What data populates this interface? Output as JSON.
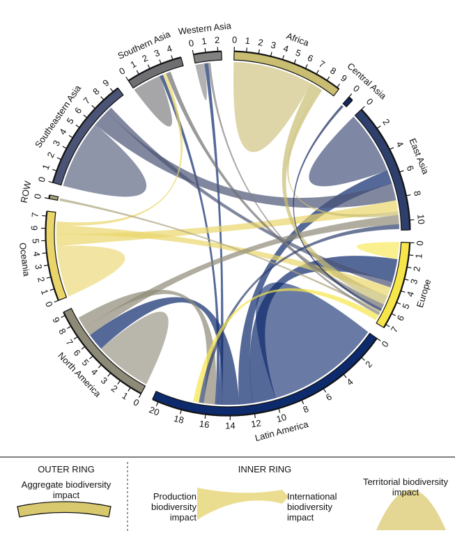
{
  "chart_data": {
    "type": "chord",
    "regions": [
      {
        "name": "Africa",
        "total": 9.2,
        "color": "#c9bd72",
        "ticks": [
          0,
          1,
          2,
          3,
          4,
          5,
          6,
          7,
          8,
          9
        ]
      },
      {
        "name": "Central Asia",
        "total": 0.4,
        "color": "#15285a",
        "ticks": [
          0
        ]
      },
      {
        "name": "East Asia",
        "total": 10.8,
        "color": "#2e3f6c",
        "ticks": [
          0,
          2,
          4,
          6,
          8,
          10
        ]
      },
      {
        "name": "Europe",
        "total": 7.3,
        "color": "#f7e64a",
        "ticks": [
          0,
          1,
          2,
          3,
          4,
          5,
          6,
          7
        ]
      },
      {
        "name": "Latin America",
        "total": 20.5,
        "color": "#0d2a6c",
        "ticks": [
          0,
          2,
          4,
          6,
          8,
          10,
          12,
          14,
          16,
          18,
          20
        ]
      },
      {
        "name": "North America",
        "total": 9.3,
        "color": "#8e8a78",
        "ticks": [
          0,
          1,
          2,
          3,
          4,
          5,
          6,
          7,
          8,
          9
        ]
      },
      {
        "name": "Oceania",
        "total": 7.4,
        "color": "#ead56a",
        "ticks": [
          0,
          1,
          2,
          3,
          4,
          5,
          6,
          7
        ]
      },
      {
        "name": "ROW",
        "total": 0.3,
        "color": "#aca47c",
        "ticks": [
          0
        ]
      },
      {
        "name": "Southeastern Asia",
        "total": 9.5,
        "color": "#4b5475",
        "ticks": [
          0,
          1,
          2,
          3,
          4,
          5,
          6,
          7,
          8,
          9
        ]
      },
      {
        "name": "Southern Asia",
        "total": 4.7,
        "color": "#6f6f73",
        "ticks": [
          0,
          1,
          2,
          3,
          4
        ]
      },
      {
        "name": "Western Asia",
        "total": 2.3,
        "color": "#828282",
        "ticks": [
          0,
          1,
          2
        ]
      }
    ],
    "flows": [
      {
        "from": "Africa",
        "to": "Africa",
        "value": 7
      },
      {
        "from": "East Asia",
        "to": "East Asia",
        "value": 5.5
      },
      {
        "from": "Europe",
        "to": "Europe",
        "value": 1.5
      },
      {
        "from": "Latin America",
        "to": "Latin America",
        "value": 10
      },
      {
        "from": "North America",
        "to": "North America",
        "value": 5
      },
      {
        "from": "Oceania",
        "to": "Oceania",
        "value": 4.5
      },
      {
        "from": "Southeastern Asia",
        "to": "Southeastern Asia",
        "value": 6
      },
      {
        "from": "Southern Asia",
        "to": "Southern Asia",
        "value": 2.5
      },
      {
        "from": "Western Asia",
        "to": "Western Asia",
        "value": 0.8
      },
      {
        "from": "Latin America",
        "to": "Europe",
        "value": 2
      },
      {
        "from": "Latin America",
        "to": "East Asia",
        "value": 1.2
      },
      {
        "from": "Latin America",
        "to": "North America",
        "value": 1.5
      },
      {
        "from": "Latin America",
        "to": "Western Asia",
        "value": 0.3
      },
      {
        "from": "Latin America",
        "to": "Southern Asia",
        "value": 0.3
      },
      {
        "from": "Southeastern Asia",
        "to": "East Asia",
        "value": 1.5
      },
      {
        "from": "Southeastern Asia",
        "to": "Europe",
        "value": 0.5
      },
      {
        "from": "Oceania",
        "to": "East Asia",
        "value": 1
      },
      {
        "from": "Oceania",
        "to": "Europe",
        "value": 0.8
      },
      {
        "from": "Oceania",
        "to": "Southern Asia",
        "value": 0.3
      },
      {
        "from": "Africa",
        "to": "Europe",
        "value": 0.8
      },
      {
        "from": "Africa",
        "to": "East Asia",
        "value": 0.3
      },
      {
        "from": "North America",
        "to": "East Asia",
        "value": 0.8
      },
      {
        "from": "North America",
        "to": "Latin America",
        "value": 1
      },
      {
        "from": "Southern Asia",
        "to": "Europe",
        "value": 0.4
      },
      {
        "from": "Central Asia",
        "to": "Europe",
        "value": 0.2
      },
      {
        "from": "ROW",
        "to": "Europe",
        "value": 0.2
      },
      {
        "from": "Western Asia",
        "to": "Europe",
        "value": 0.2
      },
      {
        "from": "East Asia",
        "to": "Latin America",
        "value": 0.4
      },
      {
        "from": "Europe",
        "to": "Latin America",
        "value": 0.5
      }
    ]
  },
  "legend": {
    "outer_heading": "OUTER RING",
    "outer_label": "Aggregate biodiversity impact",
    "inner_heading": "INNER RING",
    "production": "Production biodiversity impact",
    "international": "International biodiversity impact",
    "territorial": "Territorial biodiversity impact"
  }
}
